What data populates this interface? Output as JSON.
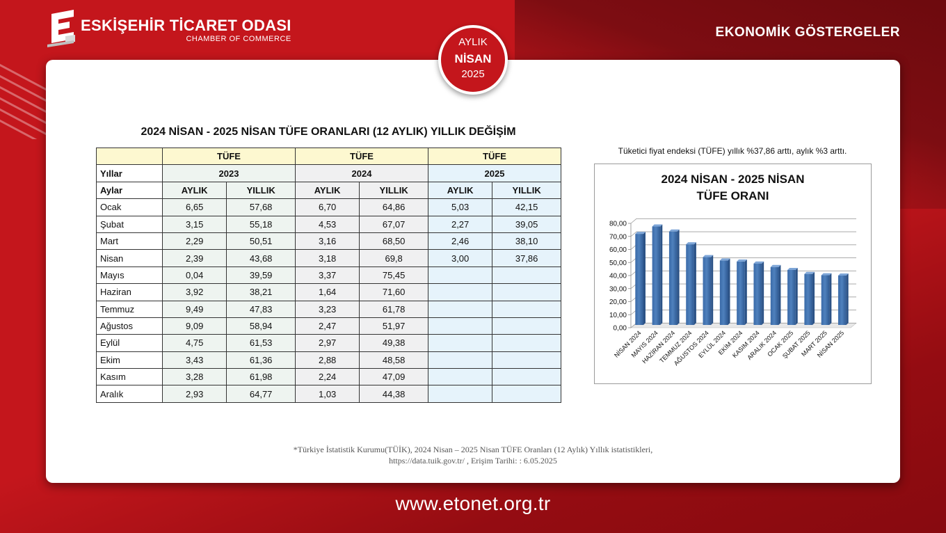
{
  "header": {
    "org_name": "ESKİŞEHİR TİCARET ODASI",
    "org_sub": "CHAMBER OF COMMERCE",
    "section": "EKONOMİK GÖSTERGELER"
  },
  "badge": {
    "line1": "AYLIK",
    "line2": "NİSAN",
    "line3": "2025"
  },
  "table": {
    "title": "2024 NİSAN - 2025 NİSAN TÜFE ORANLARI (12 AYLIK) YILLIK DEĞİŞİM",
    "group_label": "TÜFE",
    "years_label": "Yıllar",
    "months_label": "Aylar",
    "years": [
      "2023",
      "2024",
      "2025"
    ],
    "sub_monthly": "AYLIK",
    "sub_yearly": "YILLIK",
    "rows": [
      {
        "month": "Ocak",
        "v": [
          "6,65",
          "57,68",
          "6,70",
          "64,86",
          "5,03",
          "42,15"
        ]
      },
      {
        "month": "Şubat",
        "v": [
          "3,15",
          "55,18",
          "4,53",
          "67,07",
          "2,27",
          "39,05"
        ]
      },
      {
        "month": "Mart",
        "v": [
          "2,29",
          "50,51",
          "3,16",
          "68,50",
          "2,46",
          "38,10"
        ]
      },
      {
        "month": "Nisan",
        "v": [
          "2,39",
          "43,68",
          "3,18",
          "69,8",
          "3,00",
          "37,86"
        ]
      },
      {
        "month": "Mayıs",
        "v": [
          "0,04",
          "39,59",
          "3,37",
          "75,45",
          "",
          ""
        ]
      },
      {
        "month": "Haziran",
        "v": [
          "3,92",
          "38,21",
          "1,64",
          "71,60",
          "",
          ""
        ]
      },
      {
        "month": "Temmuz",
        "v": [
          "9,49",
          "47,83",
          "3,23",
          "61,78",
          "",
          ""
        ]
      },
      {
        "month": "Ağustos",
        "v": [
          "9,09",
          "58,94",
          "2,47",
          "51,97",
          "",
          ""
        ]
      },
      {
        "month": "Eylül",
        "v": [
          "4,75",
          "61,53",
          "2,97",
          "49,38",
          "",
          ""
        ]
      },
      {
        "month": "Ekim",
        "v": [
          "3,43",
          "61,36",
          "2,88",
          "48,58",
          "",
          ""
        ]
      },
      {
        "month": "Kasım",
        "v": [
          "3,28",
          "61,98",
          "2,24",
          "47,09",
          "",
          ""
        ]
      },
      {
        "month": "Aralık",
        "v": [
          "2,93",
          "64,77",
          "1,03",
          "44,38",
          "",
          ""
        ]
      }
    ]
  },
  "note": "Tüketici fiyat endeksi (TÜFE) yıllık %37,86 arttı, aylık %3 arttı.",
  "chart_data": {
    "type": "bar",
    "title_line1": "2024 NİSAN - 2025 NİSAN",
    "title_line2": "TÜFE ORANI",
    "categories": [
      "NİSAN 2024",
      "MAYIS 2024",
      "HAZİRAN 2024",
      "TEMMUZ 2024",
      "AĞUSTOS 2024",
      "EYLÜL 2024",
      "EKİM 2024",
      "KASIM 2024",
      "ARALIK 2024",
      "OCAK 2025",
      "ŞUBAT 2025",
      "MART 2025",
      "NİSAN 2025"
    ],
    "values": [
      69.8,
      75.45,
      71.6,
      61.78,
      51.97,
      49.38,
      48.58,
      47.09,
      44.38,
      42.15,
      39.05,
      38.1,
      37.86
    ],
    "yticks": [
      "0,00",
      "10,00",
      "20,00",
      "30,00",
      "40,00",
      "50,00",
      "60,00",
      "70,00",
      "80,00"
    ],
    "ylim": [
      0,
      80
    ],
    "grid": true,
    "bar_color": "#4f81bd"
  },
  "source": {
    "line1": "*Türkiye İstatistik Kurumu(TÜİK), 2024 Nisan  – 2025 Nisan TÜFE Oranları (12 Aylık) Yıllık istatistikleri,",
    "line2": "https://data.tuik.gov.tr/ , Erişim Tarihi: : 6.05.2025"
  },
  "footer": {
    "url": "www.etonet.org.tr"
  }
}
